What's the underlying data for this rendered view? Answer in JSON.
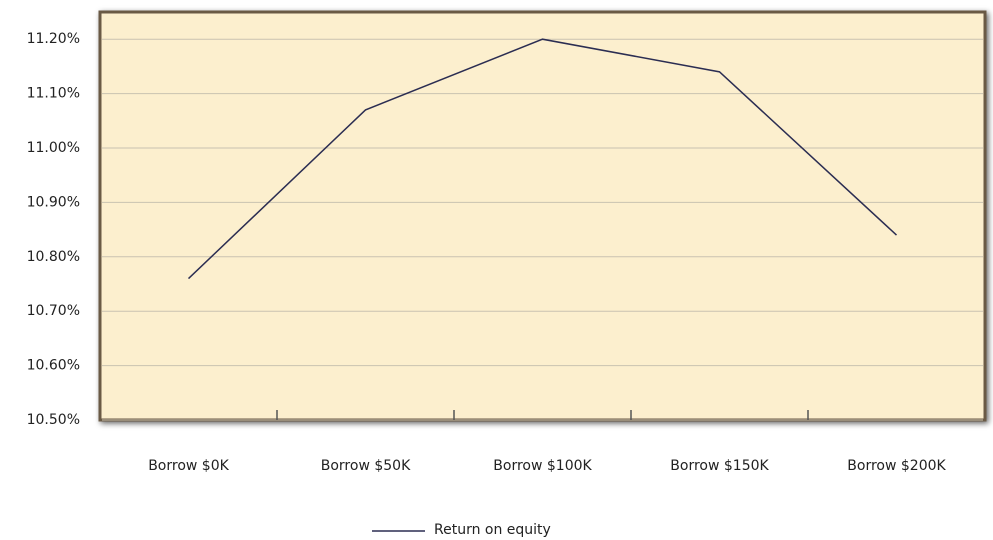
{
  "chart_data": {
    "type": "line",
    "categories": [
      "Borrow $0K",
      "Borrow $50K",
      "Borrow $100K",
      "Borrow $150K",
      "Borrow $200K"
    ],
    "series": [
      {
        "name": "Return on equity",
        "color": "#2b2d52",
        "values": [
          10.76,
          11.07,
          11.2,
          11.14,
          10.84
        ]
      }
    ],
    "ylim": [
      10.5,
      11.25
    ],
    "yticks": [
      {
        "value": 10.5,
        "label": "10.50%"
      },
      {
        "value": 10.6,
        "label": "10.60%"
      },
      {
        "value": 10.7,
        "label": "10.70%"
      },
      {
        "value": 10.8,
        "label": "10.80%"
      },
      {
        "value": 10.9,
        "label": "10.90%"
      },
      {
        "value": 11.0,
        "label": "11.00%"
      },
      {
        "value": 11.1,
        "label": "11.10%"
      },
      {
        "value": 11.2,
        "label": "11.20%"
      }
    ],
    "grid": true,
    "legend": "bottom"
  }
}
